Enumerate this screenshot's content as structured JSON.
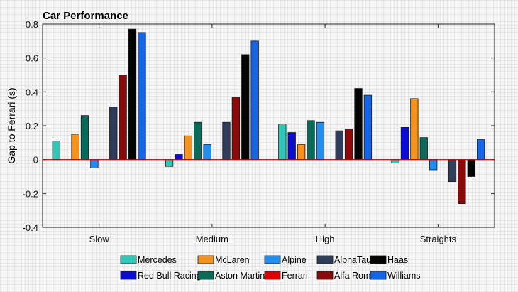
{
  "chart_data": {
    "type": "bar",
    "title": "Car Performance",
    "xlabel": "",
    "ylabel": "Gap to Ferrari (s)",
    "ylim": [
      -0.4,
      0.8
    ],
    "yticks": [
      -0.4,
      -0.2,
      0,
      0.2,
      0.4,
      0.6,
      0.8
    ],
    "ytick_labels": [
      "-0.4",
      "-0.2",
      "0",
      "0.2",
      "0.4",
      "0.6",
      "0.8"
    ],
    "categories": [
      "Slow",
      "Medium",
      "High",
      "Straights"
    ],
    "grid": false,
    "legend_position": "bottom",
    "series": [
      {
        "name": "Mercedes",
        "color": "#2ec8b8",
        "values": [
          0.11,
          -0.04,
          0.21,
          -0.02
        ]
      },
      {
        "name": "Red Bull Racing",
        "color": "#0b0bd6",
        "values": [
          0.0,
          0.03,
          0.16,
          0.19
        ]
      },
      {
        "name": "McLaren",
        "color": "#f7921d",
        "values": [
          0.15,
          0.14,
          0.09,
          0.36
        ]
      },
      {
        "name": "Aston Martin",
        "color": "#0b6b5a",
        "values": [
          0.26,
          0.22,
          0.23,
          0.13
        ]
      },
      {
        "name": "Alpine",
        "color": "#1f8ef0",
        "values": [
          -0.05,
          0.09,
          0.22,
          -0.06
        ]
      },
      {
        "name": "Ferrari",
        "color": "#e00000",
        "values": [
          0.0,
          0.0,
          0.0,
          0.0
        ]
      },
      {
        "name": "AlphaTauri",
        "color": "#2f3d5c",
        "values": [
          0.31,
          0.22,
          0.17,
          -0.13
        ]
      },
      {
        "name": "Alfa Romeo",
        "color": "#8a0a0a",
        "values": [
          0.5,
          0.37,
          0.18,
          -0.26
        ]
      },
      {
        "name": "Haas",
        "color": "#050505",
        "values": [
          0.77,
          0.62,
          0.42,
          -0.1
        ]
      },
      {
        "name": "Williams",
        "color": "#1466e8",
        "values": [
          0.75,
          0.7,
          0.38,
          0.12
        ]
      }
    ],
    "legend_order": [
      "Mercedes",
      "McLaren",
      "Alpine",
      "AlphaTauri",
      "Haas",
      "Red Bull Racing",
      "Aston Martin",
      "Ferrari",
      "Alfa Romeo",
      "Williams"
    ]
  }
}
